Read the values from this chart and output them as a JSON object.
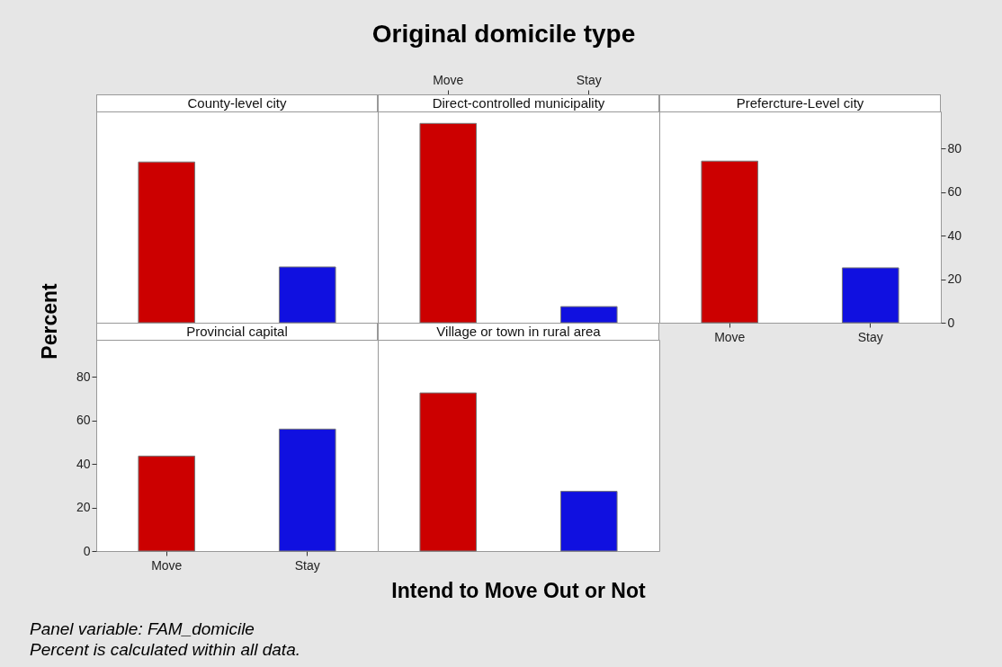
{
  "chart_data": [
    {
      "type": "other",
      "title": "Original domicile type",
      "xlabel": "Intend to Move Out or Not",
      "ylabel": "Percent",
      "annotations": [
        "Panel variable: FAM_domicile",
        "Percent is calculated within all data."
      ]
    },
    {
      "type": "bar",
      "title": "County-level city",
      "categories": [
        null,
        null
      ],
      "values": [
        73.8,
        25.6
      ],
      "colors": [
        "#cc0000",
        "#1010e0"
      ],
      "ylim": [
        0,
        97
      ],
      "yticks": [
        0,
        20,
        40,
        60,
        80
      ],
      "tick_labels": false
    },
    {
      "type": "bar",
      "title": "Direct-controlled municipality",
      "categories": [
        "Move",
        "Stay"
      ],
      "values": [
        91.5,
        7.4
      ],
      "colors": [
        "#cc0000",
        "#1010e0"
      ],
      "ylim": [
        0,
        97
      ],
      "yticks": [
        0,
        20,
        40,
        60,
        80
      ],
      "tick_labels": "x"
    },
    {
      "type": "bar",
      "title": "Prefercture-Level city",
      "categories": [
        "Move",
        "Stay"
      ],
      "values": [
        74.2,
        25.2
      ],
      "colors": [
        "#cc0000",
        "#1010e0"
      ],
      "ylim": [
        0,
        97
      ],
      "yticks": [
        0,
        20,
        40,
        60,
        80
      ]
    },
    {
      "type": "bar",
      "title": "Provincial capital",
      "categories": [
        "Move",
        "Stay"
      ],
      "values": [
        43.6,
        56.0
      ],
      "colors": [
        "#cc0000",
        "#1010e0"
      ],
      "ylim": [
        0,
        97
      ],
      "yticks": [
        0,
        20,
        40,
        60,
        80
      ]
    },
    {
      "type": "bar",
      "title": "Village or town in rural area",
      "categories": [
        null,
        null
      ],
      "values": [
        72.6,
        27.4
      ],
      "colors": [
        "#cc0000",
        "#1010e0"
      ],
      "ylim": [
        0,
        97
      ],
      "yticks": [
        0,
        20,
        40,
        60,
        80
      ],
      "tick_labels": false
    }
  ]
}
